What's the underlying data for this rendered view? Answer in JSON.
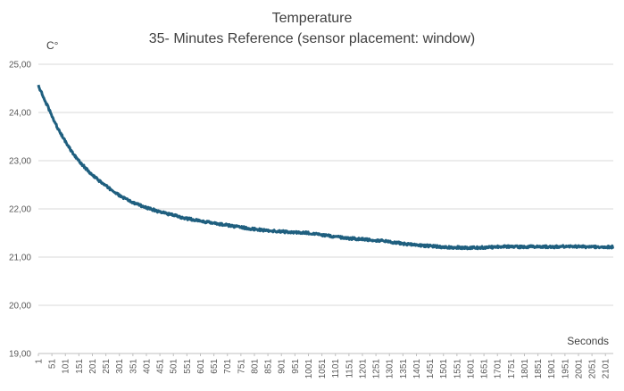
{
  "chart_data": {
    "type": "line",
    "title": "Temperature",
    "subtitle": "35- Minutes Reference (sensor placement: window)",
    "ylabel": "C°",
    "xlabel": "Seconds",
    "ylim": [
      19,
      25
    ],
    "xlim": [
      1,
      2130
    ],
    "y_ticks": [
      "19,00",
      "20,00",
      "21,00",
      "22,00",
      "23,00",
      "24,00",
      "25,00"
    ],
    "y_tick_values": [
      19,
      20,
      21,
      22,
      23,
      24,
      25
    ],
    "x_ticks": [
      "1",
      "51",
      "101",
      "151",
      "201",
      "251",
      "301",
      "351",
      "401",
      "451",
      "501",
      "551",
      "601",
      "651",
      "701",
      "751",
      "801",
      "851",
      "901",
      "951",
      "1001",
      "1051",
      "1101",
      "1151",
      "1201",
      "1251",
      "1301",
      "1351",
      "1401",
      "1451",
      "1501",
      "1551",
      "1601",
      "1651",
      "1701",
      "1751",
      "1801",
      "1851",
      "1901",
      "1951",
      "2001",
      "2051",
      "2101"
    ],
    "grid": true,
    "legend": "none",
    "series": [
      {
        "color": "#1f5f7f",
        "x": [
          1,
          25,
          50,
          75,
          100,
          125,
          150,
          175,
          200,
          250,
          300,
          350,
          400,
          450,
          500,
          550,
          600,
          650,
          700,
          750,
          800,
          850,
          900,
          950,
          1000,
          1050,
          1100,
          1150,
          1200,
          1250,
          1300,
          1350,
          1400,
          1450,
          1500,
          1550,
          1600,
          1650,
          1700,
          1750,
          1800,
          1850,
          1900,
          1950,
          2000,
          2050,
          2100,
          2130
        ],
        "values": [
          24.55,
          24.25,
          23.95,
          23.65,
          23.4,
          23.18,
          23.0,
          22.85,
          22.7,
          22.48,
          22.28,
          22.13,
          22.03,
          21.94,
          21.87,
          21.8,
          21.75,
          21.7,
          21.66,
          21.62,
          21.58,
          21.55,
          21.53,
          21.51,
          21.5,
          21.46,
          21.42,
          21.39,
          21.37,
          21.35,
          21.32,
          21.28,
          21.25,
          21.23,
          21.21,
          21.2,
          21.19,
          21.2,
          21.21,
          21.22,
          21.21,
          21.22,
          21.21,
          21.22,
          21.22,
          21.21,
          21.21,
          21.21
        ]
      }
    ]
  }
}
